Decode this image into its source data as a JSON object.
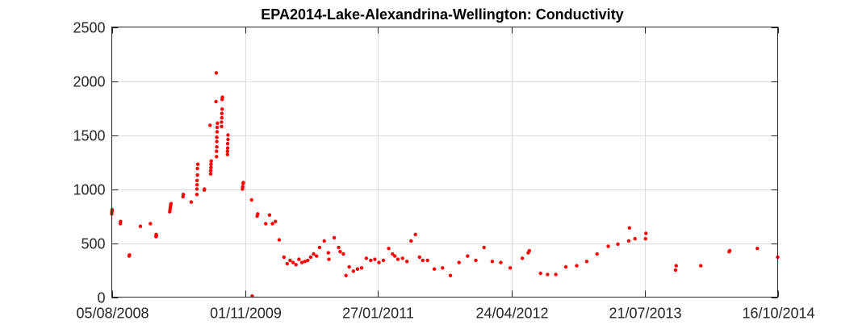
{
  "chart_data": {
    "type": "scatter",
    "title": "EPA2014-Lake-Alexandrina-Wellington: Conductivity",
    "xlabel": "",
    "ylabel": "",
    "x_type": "date",
    "xlim": [
      "2008-08-05",
      "2014-10-16"
    ],
    "ylim": [
      0,
      2500
    ],
    "x_ticks": [
      "05/08/2008",
      "01/11/2009",
      "27/01/2011",
      "24/04/2012",
      "21/07/2013",
      "16/10/2014"
    ],
    "y_ticks": [
      0,
      500,
      1000,
      1500,
      2000,
      2500
    ],
    "grid": true,
    "legend": "none",
    "marker_color": "#ff0000",
    "series": [
      {
        "points": [
          [
            "2008-08-05",
            770
          ],
          [
            "2008-08-05",
            785
          ],
          [
            "2008-08-06",
            800
          ],
          [
            "2008-08-06",
            810
          ],
          [
            "2008-09-03",
            680
          ],
          [
            "2008-09-04",
            700
          ],
          [
            "2008-10-03",
            380
          ],
          [
            "2008-10-04",
            390
          ],
          [
            "2008-11-10",
            655
          ],
          [
            "2008-12-14",
            680
          ],
          [
            "2009-01-02",
            560
          ],
          [
            "2009-01-03",
            580
          ],
          [
            "2009-01-04",
            570
          ],
          [
            "2009-02-18",
            790
          ],
          [
            "2009-02-19",
            810
          ],
          [
            "2009-02-20",
            830
          ],
          [
            "2009-02-21",
            850
          ],
          [
            "2009-02-22",
            865
          ],
          [
            "2009-04-04",
            930
          ],
          [
            "2009-04-05",
            950
          ],
          [
            "2009-05-02",
            880
          ],
          [
            "2009-05-21",
            950
          ],
          [
            "2009-05-21",
            1000
          ],
          [
            "2009-05-22",
            1040
          ],
          [
            "2009-05-22",
            1080
          ],
          [
            "2009-05-23",
            1130
          ],
          [
            "2009-05-23",
            1190
          ],
          [
            "2009-05-24",
            1230
          ],
          [
            "2009-06-15",
            990
          ],
          [
            "2009-06-16",
            1000
          ],
          [
            "2009-07-07",
            1140
          ],
          [
            "2009-07-07",
            1170
          ],
          [
            "2009-07-08",
            1200
          ],
          [
            "2009-07-08",
            1230
          ],
          [
            "2009-07-09",
            1260
          ],
          [
            "2009-07-05",
            1590
          ],
          [
            "2009-07-25",
            1810
          ],
          [
            "2009-07-26",
            2075
          ],
          [
            "2009-07-27",
            1300
          ],
          [
            "2009-07-27",
            1350
          ],
          [
            "2009-07-28",
            1390
          ],
          [
            "2009-07-28",
            1440
          ],
          [
            "2009-07-28",
            1480
          ],
          [
            "2009-07-29",
            1530
          ],
          [
            "2009-07-29",
            1570
          ],
          [
            "2009-07-30",
            1610
          ],
          [
            "2009-08-13",
            1580
          ],
          [
            "2009-08-13",
            1620
          ],
          [
            "2009-08-14",
            1660
          ],
          [
            "2009-08-14",
            1700
          ],
          [
            "2009-08-15",
            1740
          ],
          [
            "2009-08-15",
            1830
          ],
          [
            "2009-08-16",
            1850
          ],
          [
            "2009-09-02",
            1320
          ],
          [
            "2009-09-02",
            1350
          ],
          [
            "2009-09-03",
            1380
          ],
          [
            "2009-09-03",
            1420
          ],
          [
            "2009-09-04",
            1460
          ],
          [
            "2009-09-04",
            1500
          ],
          [
            "2009-10-23",
            1000
          ],
          [
            "2009-10-24",
            1020
          ],
          [
            "2009-10-25",
            1050
          ],
          [
            "2009-10-26",
            1060
          ],
          [
            "2009-11-23",
            900
          ],
          [
            "2009-11-25",
            10
          ],
          [
            "2009-12-12",
            750
          ],
          [
            "2009-12-14",
            770
          ],
          [
            "2010-01-10",
            680
          ],
          [
            "2010-01-23",
            760
          ],
          [
            "2010-02-02",
            680
          ],
          [
            "2010-02-12",
            700
          ],
          [
            "2010-02-25",
            530
          ],
          [
            "2010-03-13",
            370
          ],
          [
            "2010-03-24",
            310
          ],
          [
            "2010-04-03",
            340
          ],
          [
            "2010-04-13",
            320
          ],
          [
            "2010-04-23",
            300
          ],
          [
            "2010-05-03",
            350
          ],
          [
            "2010-05-13",
            320
          ],
          [
            "2010-05-23",
            330
          ],
          [
            "2010-06-02",
            340
          ],
          [
            "2010-06-12",
            370
          ],
          [
            "2010-06-22",
            400
          ],
          [
            "2010-07-02",
            380
          ],
          [
            "2010-07-12",
            460
          ],
          [
            "2010-07-28",
            520
          ],
          [
            "2010-08-11",
            410
          ],
          [
            "2010-08-13",
            350
          ],
          [
            "2010-08-31",
            550
          ],
          [
            "2010-09-15",
            460
          ],
          [
            "2010-09-20",
            420
          ],
          [
            "2010-10-01",
            400
          ],
          [
            "2010-10-10",
            200
          ],
          [
            "2010-10-21",
            280
          ],
          [
            "2010-11-04",
            240
          ],
          [
            "2010-11-18",
            260
          ],
          [
            "2010-12-02",
            270
          ],
          [
            "2010-12-18",
            360
          ],
          [
            "2011-01-02",
            340
          ],
          [
            "2011-01-16",
            350
          ],
          [
            "2011-01-30",
            320
          ],
          [
            "2011-02-14",
            340
          ],
          [
            "2011-03-04",
            450
          ],
          [
            "2011-03-17",
            400
          ],
          [
            "2011-03-25",
            380
          ],
          [
            "2011-04-04",
            350
          ],
          [
            "2011-04-20",
            360
          ],
          [
            "2011-05-05",
            330
          ],
          [
            "2011-05-19",
            520
          ],
          [
            "2011-06-03",
            580
          ],
          [
            "2011-06-17",
            370
          ],
          [
            "2011-06-28",
            340
          ],
          [
            "2011-07-14",
            340
          ],
          [
            "2011-08-06",
            260
          ],
          [
            "2011-09-03",
            270
          ],
          [
            "2011-09-30",
            200
          ],
          [
            "2011-10-29",
            320
          ],
          [
            "2011-11-27",
            380
          ],
          [
            "2011-12-25",
            340
          ],
          [
            "2012-01-22",
            460
          ],
          [
            "2012-02-19",
            330
          ],
          [
            "2012-03-19",
            320
          ],
          [
            "2012-04-20",
            270
          ],
          [
            "2012-05-31",
            360
          ],
          [
            "2012-06-20",
            410
          ],
          [
            "2012-06-24",
            430
          ],
          [
            "2012-08-01",
            220
          ],
          [
            "2012-08-25",
            210
          ],
          [
            "2012-09-22",
            210
          ],
          [
            "2012-10-26",
            280
          ],
          [
            "2012-12-02",
            290
          ],
          [
            "2013-01-05",
            330
          ],
          [
            "2013-02-09",
            400
          ],
          [
            "2013-03-19",
            470
          ],
          [
            "2013-04-21",
            490
          ],
          [
            "2013-05-28",
            520
          ],
          [
            "2013-05-30",
            640
          ],
          [
            "2013-06-18",
            540
          ],
          [
            "2013-07-24",
            540
          ],
          [
            "2013-07-25",
            590
          ],
          [
            "2013-11-03",
            250
          ],
          [
            "2013-11-05",
            290
          ],
          [
            "2014-01-28",
            290
          ],
          [
            "2014-05-04",
            420
          ],
          [
            "2014-05-06",
            430
          ],
          [
            "2014-08-08",
            450
          ],
          [
            "2014-10-16",
            370
          ]
        ]
      }
    ]
  }
}
